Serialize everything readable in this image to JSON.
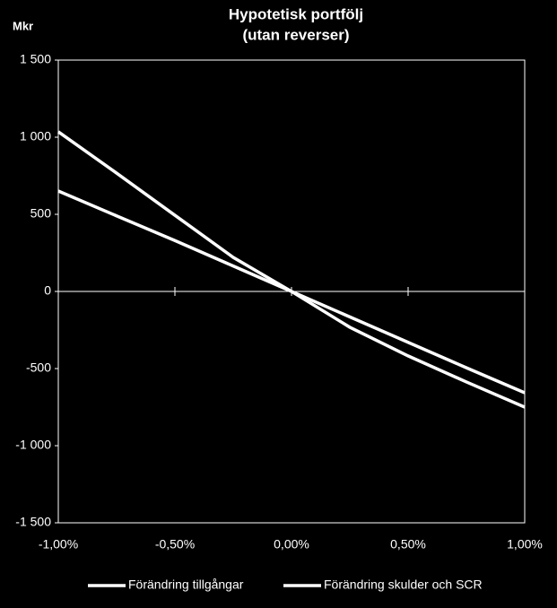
{
  "chart_data": {
    "type": "line",
    "title": "Hypotetisk portfölj",
    "subtitle": "(utan reverser)",
    "y_label": "Mkr",
    "x": [
      -1,
      -0.75,
      -0.5,
      -0.25,
      0,
      0.25,
      0.5,
      0.75,
      1
    ],
    "series": [
      {
        "name": "Förändring tillgångar",
        "color": "#ffffff",
        "values": [
          651,
          490,
          330,
          165,
          0,
          -165,
          -330,
          -495,
          -657
        ]
      },
      {
        "name": "Förändring skulder och SCR",
        "color": "#ffffff",
        "values": [
          1035,
          767,
          494,
          221,
          0,
          -232,
          -418,
          -587,
          -750
        ]
      }
    ],
    "xlim": [
      -1,
      1
    ],
    "xticks": [
      {
        "value": -1,
        "label": "-1,00%"
      },
      {
        "value": -0.5,
        "label": "-0,50%"
      },
      {
        "value": 0,
        "label": "0,00%"
      },
      {
        "value": 0.5,
        "label": "0,50%"
      },
      {
        "value": 1,
        "label": "1,00%"
      }
    ],
    "ylim": [
      -1500,
      1500
    ],
    "yticks": [
      {
        "value": -1500,
        "label": "-1 500"
      },
      {
        "value": -1000,
        "label": "-1 000"
      },
      -500,
      0,
      500,
      {
        "value": 1000,
        "label": "1 000"
      },
      {
        "value": 1500,
        "label": "1 500"
      }
    ],
    "legend": "bottom"
  }
}
